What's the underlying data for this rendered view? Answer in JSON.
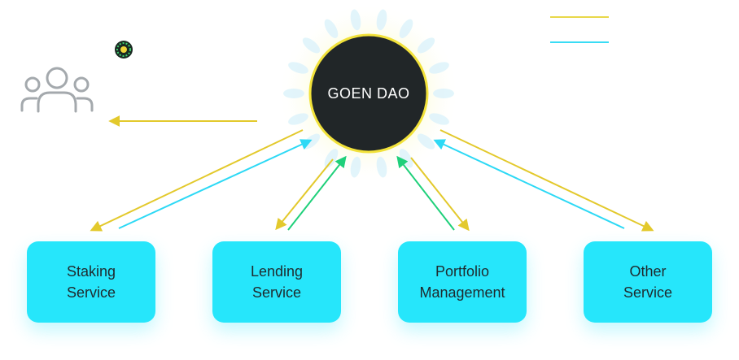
{
  "core": {
    "label": "GOEN DAO"
  },
  "services": [
    {
      "line1": "Staking",
      "line2": "Service"
    },
    {
      "line1": "Lending",
      "line2": "Service"
    },
    {
      "line1": "Portfolio",
      "line2": "Management"
    },
    {
      "line1": "Other",
      "line2": "Service"
    }
  ],
  "colors": {
    "service_box": "#26e6fb",
    "core_fill": "#212628",
    "core_ring": "#f2e23a",
    "arrow_yellow": "#e3c92c",
    "arrow_cyan": "#2dd9f5",
    "arrow_green": "#1fd07a",
    "users_icon": "#a4a9ad"
  },
  "icons": {
    "users": "users-group-icon",
    "token": "goen-token-icon"
  }
}
